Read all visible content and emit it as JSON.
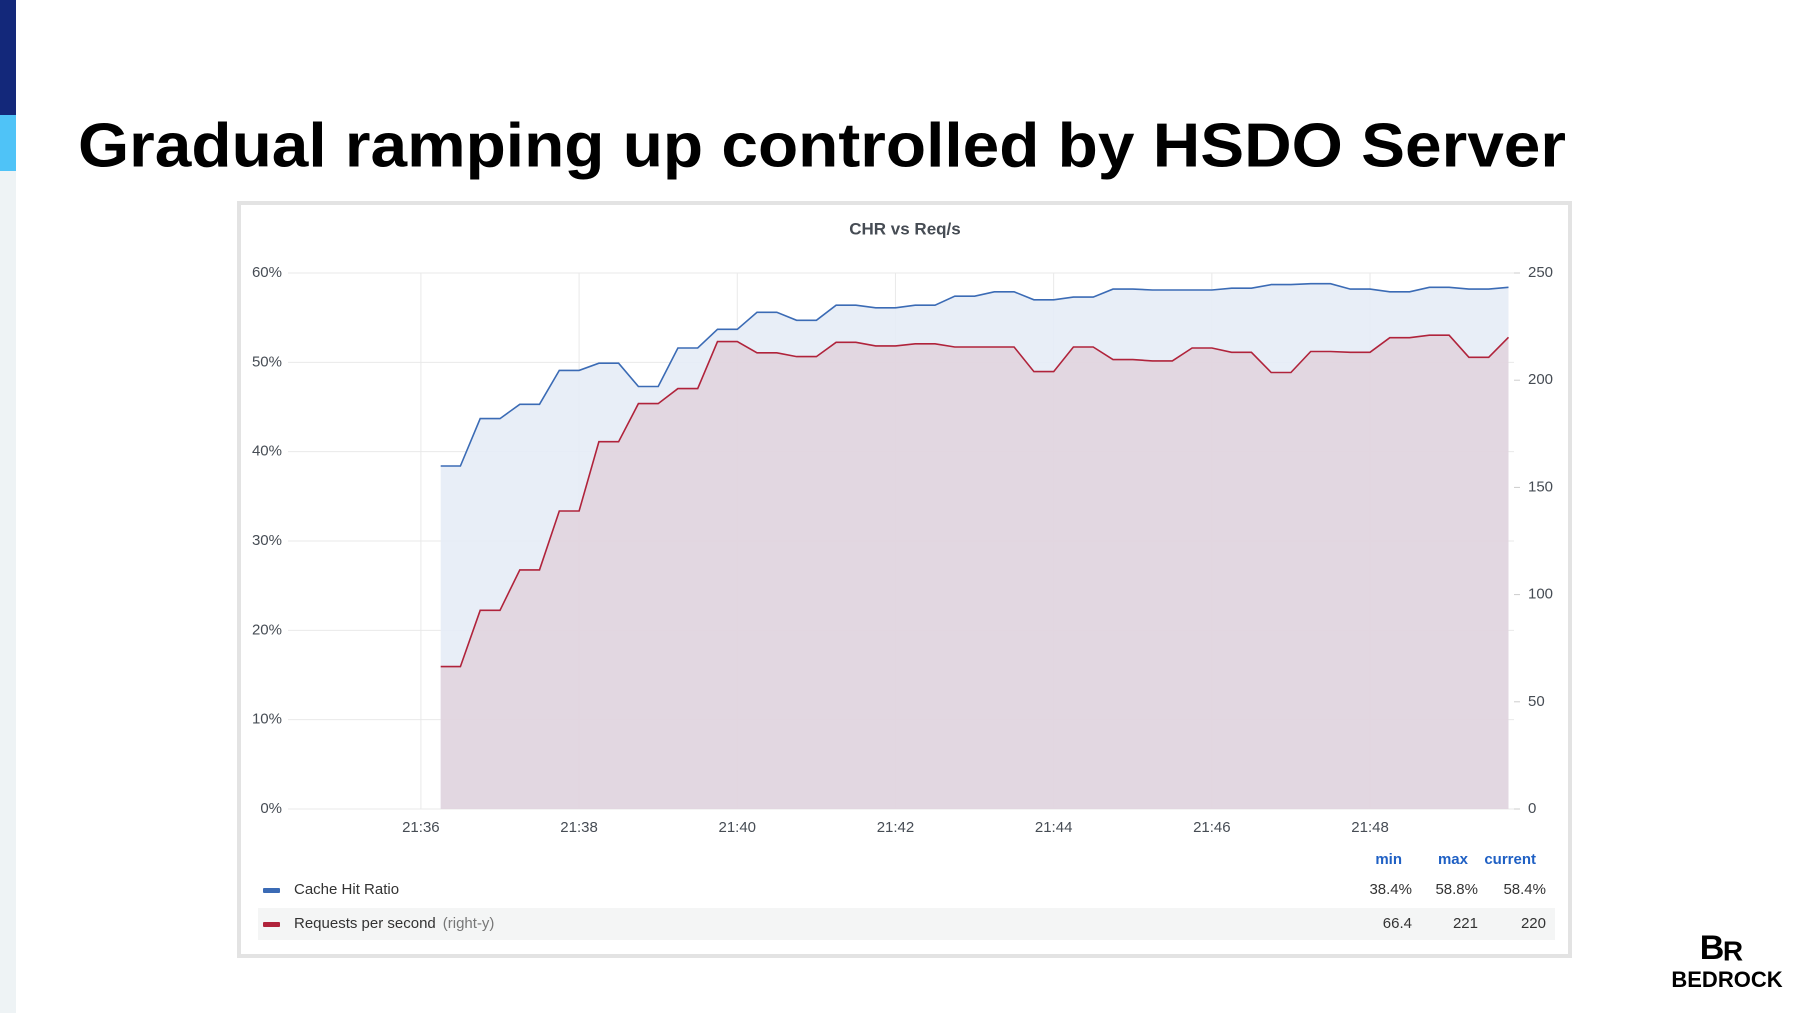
{
  "slide_title": "Gradual ramping up controlled by HSDO Server",
  "logo": "BEDROCK",
  "chart_data": {
    "type": "line",
    "title": "CHR vs Req/s",
    "x": [
      36.25,
      36.5,
      36.75,
      37,
      37.25,
      37.5,
      37.75,
      38,
      38.25,
      38.5,
      38.75,
      39,
      39.25,
      39.5,
      39.75,
      40,
      40.25,
      40.5,
      40.75,
      41,
      41.25,
      41.5,
      41.75,
      42,
      42.25,
      42.5,
      42.75,
      43,
      43.25,
      43.5,
      43.75,
      44,
      44.25,
      44.5,
      44.75,
      45,
      45.25,
      45.5,
      45.75,
      46,
      46.25,
      46.5,
      46.75,
      47,
      47.25,
      47.5,
      47.75,
      48,
      48.25,
      48.5,
      48.75,
      49,
      49.25,
      49.5,
      49.75
    ],
    "xlim": [
      34.32,
      49.82
    ],
    "xticks": [
      {
        "value": 36,
        "label": "21:36"
      },
      {
        "value": 38,
        "label": "21:38"
      },
      {
        "value": 40,
        "label": "21:40"
      },
      {
        "value": 42,
        "label": "21:42"
      },
      {
        "value": 44,
        "label": "21:44"
      },
      {
        "value": 46,
        "label": "21:46"
      },
      {
        "value": 48,
        "label": "21:48"
      }
    ],
    "ylim": [
      0,
      60
    ],
    "yticks": [
      {
        "value": 0,
        "label": "0%"
      },
      {
        "value": 10,
        "label": "10%"
      },
      {
        "value": 20,
        "label": "20%"
      },
      {
        "value": 30,
        "label": "30%"
      },
      {
        "value": 40,
        "label": "40%"
      },
      {
        "value": 50,
        "label": "50%"
      },
      {
        "value": 60,
        "label": "60%"
      }
    ],
    "y2lim": [
      0,
      250
    ],
    "y2ticks": [
      0,
      50,
      100,
      150,
      200,
      250
    ],
    "grid": true,
    "legend_columns": [
      "min",
      "max",
      "current"
    ],
    "series": [
      {
        "name": "Cache Hit Ratio",
        "color": "#3b6bb5",
        "fill_color": "#e6ecf6",
        "values": [
          38.4,
          38.4,
          43.7,
          43.7,
          45.3,
          45.3,
          49.1,
          49.1,
          49.9,
          49.9,
          47.3,
          47.3,
          51.6,
          51.6,
          53.7,
          53.7,
          55.6,
          55.6,
          54.7,
          54.7,
          56.4,
          56.4,
          56.1,
          56.1,
          56.4,
          56.4,
          57.4,
          57.4,
          57.9,
          57.9,
          57.0,
          57.0,
          57.3,
          57.3,
          58.2,
          58.2,
          58.1,
          58.1,
          58.1,
          58.1,
          58.3,
          58.3,
          58.7,
          58.7,
          58.8,
          58.8,
          58.2,
          58.2,
          57.9,
          57.9,
          58.4,
          58.4,
          58.2,
          58.2,
          58.4
        ],
        "stats": [
          38.4,
          58.8,
          58.4
        ],
        "stats_labels": [
          "38.4%",
          "58.8%",
          "58.4%"
        ]
      },
      {
        "name": "Requests per second",
        "axis_label": "(right-y)",
        "axis": "y2",
        "color": "#b0233b",
        "fill_color": "#e1d4de",
        "values": [
          66.4,
          66.4,
          92.7,
          92.7,
          111.5,
          111.5,
          139,
          139,
          171.3,
          171.3,
          189.1,
          189.1,
          196.1,
          196.1,
          218,
          218,
          212.8,
          212.8,
          211,
          211,
          217.7,
          217.7,
          216,
          216,
          217,
          217,
          215.5,
          215.5,
          215.5,
          215.5,
          204,
          204,
          215.5,
          215.5,
          209.6,
          209.6,
          209,
          209,
          215,
          215,
          213,
          213,
          203.6,
          203.6,
          213.4,
          213.4,
          213,
          213,
          219.8,
          219.8,
          221,
          221,
          210.7,
          210.7,
          220
        ],
        "stats": [
          66.4,
          221,
          220
        ]
      }
    ]
  }
}
